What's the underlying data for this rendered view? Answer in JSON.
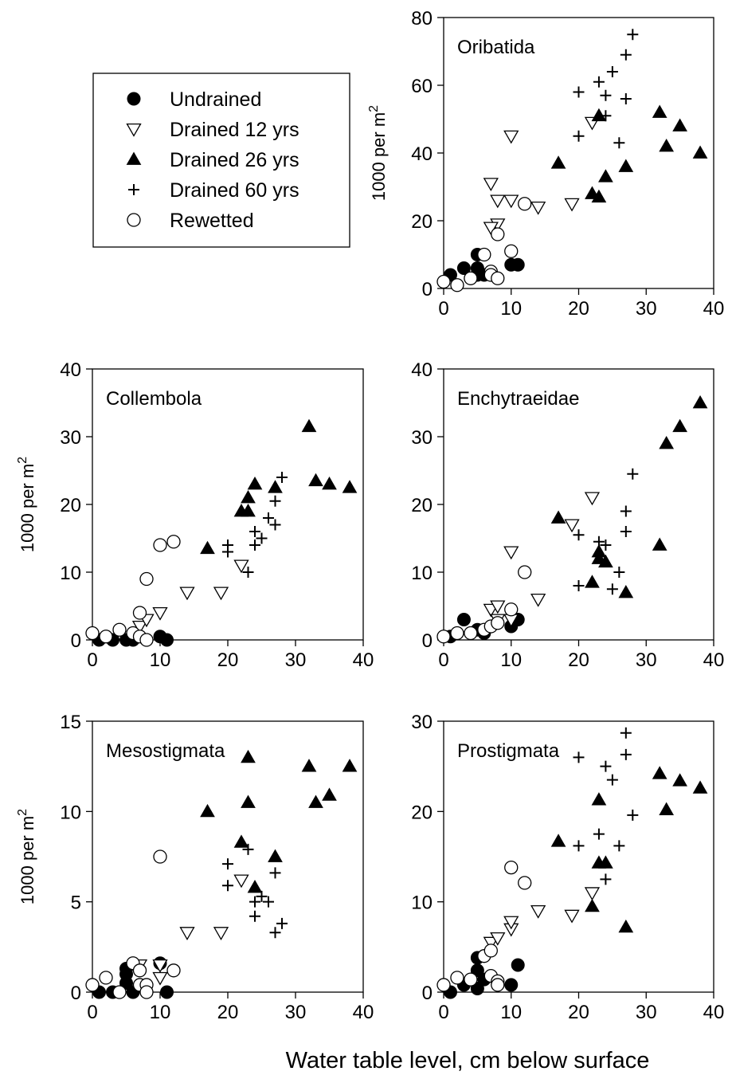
{
  "figure": {
    "xlabel": "Water table level, cm below surface"
  },
  "legend": {
    "entries": [
      {
        "label": "Undrained",
        "marker": "filled-circle"
      },
      {
        "label": "Drained 12 yrs",
        "marker": "open-down-triangle"
      },
      {
        "label": "Drained 26 yrs",
        "marker": "filled-up-triangle"
      },
      {
        "label": "Drained 60 yrs",
        "marker": "plus"
      },
      {
        "label": "Rewetted",
        "marker": "open-circle"
      }
    ]
  },
  "colors": {
    "ink": "#000000",
    "open_fill": "#ffffff"
  },
  "chart_data": [
    {
      "type": "scatter",
      "title": "Oribatida",
      "ylabel": "1000 per m²",
      "xlim": [
        0,
        40
      ],
      "ylim": [
        0,
        80
      ],
      "xticks": [
        0,
        10,
        20,
        30,
        40
      ],
      "yticks": [
        0,
        20,
        40,
        60,
        80
      ],
      "series": [
        {
          "name": "Undrained",
          "points": [
            [
              1,
              4
            ],
            [
              3,
              6
            ],
            [
              5,
              10
            ],
            [
              5,
              6
            ],
            [
              5,
              4
            ],
            [
              6,
              4
            ],
            [
              4,
              3
            ],
            [
              10,
              7
            ],
            [
              11,
              7
            ]
          ]
        },
        {
          "name": "Drained 12 yrs",
          "points": [
            [
              10,
              45
            ],
            [
              7,
              31
            ],
            [
              8,
              26
            ],
            [
              10,
              26
            ],
            [
              8,
              19
            ],
            [
              7,
              18
            ],
            [
              22,
              49
            ],
            [
              19,
              25
            ],
            [
              14,
              24
            ]
          ]
        },
        {
          "name": "Drained 26 yrs",
          "points": [
            [
              17,
              37
            ],
            [
              22,
              28
            ],
            [
              23,
              27
            ],
            [
              24,
              33
            ],
            [
              23,
              51
            ],
            [
              27,
              36
            ],
            [
              32,
              52
            ],
            [
              33,
              42
            ],
            [
              35,
              48
            ],
            [
              38,
              40
            ]
          ]
        },
        {
          "name": "Drained 60 yrs",
          "points": [
            [
              20,
              58
            ],
            [
              20,
              45
            ],
            [
              23,
              61
            ],
            [
              24,
              57
            ],
            [
              25,
              64
            ],
            [
              24,
              51
            ],
            [
              26,
              43
            ],
            [
              27,
              69
            ],
            [
              27,
              56
            ],
            [
              28,
              75
            ]
          ]
        },
        {
          "name": "Rewetted",
          "points": [
            [
              0,
              2
            ],
            [
              2,
              1
            ],
            [
              4,
              3
            ],
            [
              6,
              10
            ],
            [
              7,
              5
            ],
            [
              7,
              4
            ],
            [
              8,
              3
            ],
            [
              8,
              16
            ],
            [
              10,
              11
            ],
            [
              12,
              25
            ]
          ]
        }
      ]
    },
    {
      "type": "scatter",
      "title": "Collembola",
      "ylabel": "1000 per m²",
      "xlim": [
        0,
        40
      ],
      "ylim": [
        0,
        40
      ],
      "xticks": [
        0,
        10,
        20,
        30,
        40
      ],
      "yticks": [
        0,
        10,
        20,
        30,
        40
      ],
      "series": [
        {
          "name": "Undrained",
          "points": [
            [
              1,
              0
            ],
            [
              3,
              0
            ],
            [
              5,
              0
            ],
            [
              6,
              0
            ],
            [
              10,
              0.5
            ],
            [
              11,
              0
            ]
          ]
        },
        {
          "name": "Drained 12 yrs",
          "points": [
            [
              7,
              2
            ],
            [
              8,
              3
            ],
            [
              10,
              4
            ],
            [
              14,
              7
            ],
            [
              19,
              7
            ],
            [
              22,
              11
            ]
          ]
        },
        {
          "name": "Drained 26 yrs",
          "points": [
            [
              17,
              13.5
            ],
            [
              22,
              19
            ],
            [
              23,
              21
            ],
            [
              23,
              19
            ],
            [
              24,
              23
            ],
            [
              27,
              22.5
            ],
            [
              32,
              31.5
            ],
            [
              33,
              23.5
            ],
            [
              35,
              23
            ],
            [
              38,
              22.5
            ]
          ]
        },
        {
          "name": "Drained 60 yrs",
          "points": [
            [
              20,
              14
            ],
            [
              20,
              13
            ],
            [
              23,
              10
            ],
            [
              24,
              14
            ],
            [
              24,
              16
            ],
            [
              25,
              15
            ],
            [
              26,
              18
            ],
            [
              27,
              17
            ],
            [
              27,
              20.5
            ],
            [
              28,
              24
            ]
          ]
        },
        {
          "name": "Rewetted",
          "points": [
            [
              0,
              1
            ],
            [
              2,
              0.5
            ],
            [
              4,
              1.5
            ],
            [
              6,
              1
            ],
            [
              7,
              4
            ],
            [
              7,
              0.5
            ],
            [
              8,
              9
            ],
            [
              8,
              0
            ],
            [
              10,
              14
            ],
            [
              12,
              14.5
            ]
          ]
        }
      ]
    },
    {
      "type": "scatter",
      "title": "Enchytraeidae",
      "ylabel": "",
      "xlim": [
        0,
        40
      ],
      "ylim": [
        0,
        40
      ],
      "xticks": [
        0,
        10,
        20,
        30,
        40
      ],
      "yticks": [
        0,
        10,
        20,
        30,
        40
      ],
      "series": [
        {
          "name": "Undrained",
          "points": [
            [
              1,
              0.5
            ],
            [
              3,
              3
            ],
            [
              5,
              1.5
            ],
            [
              6,
              1
            ],
            [
              10,
              2
            ],
            [
              11,
              3
            ]
          ]
        },
        {
          "name": "Drained 12 yrs",
          "points": [
            [
              7,
              4.5
            ],
            [
              8,
              5
            ],
            [
              8,
              3
            ],
            [
              10,
              13
            ],
            [
              10,
              3
            ],
            [
              14,
              6
            ],
            [
              19,
              17
            ],
            [
              22,
              21
            ]
          ]
        },
        {
          "name": "Drained 26 yrs",
          "points": [
            [
              17,
              18
            ],
            [
              22,
              8.5
            ],
            [
              23,
              12
            ],
            [
              23,
              13
            ],
            [
              24,
              11.5
            ],
            [
              27,
              7
            ],
            [
              32,
              14
            ],
            [
              33,
              29
            ],
            [
              35,
              31.5
            ],
            [
              38,
              35
            ]
          ]
        },
        {
          "name": "Drained 60 yrs",
          "points": [
            [
              20,
              15.5
            ],
            [
              20,
              8
            ],
            [
              23,
              14.5
            ],
            [
              24,
              14
            ],
            [
              25,
              7.5
            ],
            [
              26,
              10
            ],
            [
              27,
              16
            ],
            [
              27,
              19
            ],
            [
              28,
              24.5
            ]
          ]
        },
        {
          "name": "Rewetted",
          "points": [
            [
              0,
              0.5
            ],
            [
              2,
              1
            ],
            [
              4,
              1
            ],
            [
              6,
              1.5
            ],
            [
              7,
              2
            ],
            [
              8,
              2.5
            ],
            [
              10,
              4.5
            ],
            [
              12,
              10
            ]
          ]
        }
      ]
    },
    {
      "type": "scatter",
      "title": "Mesostigmata",
      "ylabel": "1000 per m²",
      "xlim": [
        0,
        40
      ],
      "ylim": [
        0,
        15
      ],
      "xticks": [
        0,
        10,
        20,
        30,
        40
      ],
      "yticks": [
        0,
        5,
        10,
        15
      ],
      "series": [
        {
          "name": "Undrained",
          "points": [
            [
              1,
              0
            ],
            [
              3,
              0
            ],
            [
              5,
              0.5
            ],
            [
              5,
              1
            ],
            [
              5,
              1.3
            ],
            [
              6,
              0
            ],
            [
              10,
              1.6
            ],
            [
              11,
              0
            ]
          ]
        },
        {
          "name": "Drained 12 yrs",
          "points": [
            [
              7,
              1.5
            ],
            [
              10,
              1.5
            ],
            [
              10,
              0.8
            ],
            [
              14,
              3.3
            ],
            [
              19,
              3.3
            ],
            [
              22,
              6.2
            ]
          ]
        },
        {
          "name": "Drained 26 yrs",
          "points": [
            [
              17,
              10
            ],
            [
              22,
              8.3
            ],
            [
              23,
              13
            ],
            [
              23,
              10.5
            ],
            [
              24,
              5.8
            ],
            [
              27,
              7.5
            ],
            [
              32,
              12.5
            ],
            [
              33,
              10.5
            ],
            [
              35,
              10.9
            ],
            [
              38,
              12.5
            ]
          ]
        },
        {
          "name": "Drained 60 yrs",
          "points": [
            [
              20,
              7.1
            ],
            [
              20,
              5.9
            ],
            [
              23,
              7.9
            ],
            [
              24,
              5
            ],
            [
              24,
              4.2
            ],
            [
              25,
              5.3
            ],
            [
              26,
              5
            ],
            [
              27,
              6.6
            ],
            [
              27,
              3.3
            ],
            [
              28,
              3.8
            ]
          ]
        },
        {
          "name": "Rewetted",
          "points": [
            [
              0,
              0.4
            ],
            [
              2,
              0.8
            ],
            [
              4,
              0
            ],
            [
              6,
              1.6
            ],
            [
              7,
              1.2
            ],
            [
              7,
              0.4
            ],
            [
              8,
              0.4
            ],
            [
              8,
              0
            ],
            [
              10,
              7.5
            ],
            [
              12,
              1.2
            ]
          ]
        }
      ]
    },
    {
      "type": "scatter",
      "title": "Prostigmata",
      "ylabel": "",
      "xlim": [
        0,
        40
      ],
      "ylim": [
        0,
        30
      ],
      "xticks": [
        0,
        10,
        20,
        30,
        40
      ],
      "yticks": [
        0,
        10,
        20,
        30
      ],
      "series": [
        {
          "name": "Undrained",
          "points": [
            [
              1,
              0
            ],
            [
              3,
              0.8
            ],
            [
              5,
              3.8
            ],
            [
              5,
              2.4
            ],
            [
              5,
              0.4
            ],
            [
              6,
              1.4
            ],
            [
              10,
              0.8
            ],
            [
              11,
              3
            ]
          ]
        },
        {
          "name": "Drained 12 yrs",
          "points": [
            [
              7,
              5.5
            ],
            [
              8,
              6
            ],
            [
              10,
              7
            ],
            [
              10,
              7.8
            ],
            [
              14,
              9
            ],
            [
              19,
              8.5
            ],
            [
              22,
              11
            ]
          ]
        },
        {
          "name": "Drained 26 yrs",
          "points": [
            [
              17,
              16.7
            ],
            [
              22,
              9.5
            ],
            [
              23,
              21.3
            ],
            [
              23,
              14.3
            ],
            [
              24,
              14.3
            ],
            [
              27,
              7.2
            ],
            [
              32,
              24.2
            ],
            [
              33,
              20.2
            ],
            [
              35,
              23.4
            ],
            [
              38,
              22.6
            ]
          ]
        },
        {
          "name": "Drained 60 yrs",
          "points": [
            [
              20,
              26
            ],
            [
              20,
              16.2
            ],
            [
              23,
              17.5
            ],
            [
              24,
              25
            ],
            [
              24,
              12.5
            ],
            [
              25,
              23.5
            ],
            [
              26,
              16.2
            ],
            [
              27,
              28.7
            ],
            [
              27,
              26.3
            ],
            [
              28,
              19.6
            ]
          ]
        },
        {
          "name": "Rewetted",
          "points": [
            [
              0,
              0.8
            ],
            [
              2,
              1.6
            ],
            [
              4,
              1.4
            ],
            [
              6,
              4
            ],
            [
              7,
              4.6
            ],
            [
              7,
              1.8
            ],
            [
              8,
              1.2
            ],
            [
              8,
              0.8
            ],
            [
              10,
              13.8
            ],
            [
              12,
              12.1
            ]
          ]
        }
      ]
    }
  ]
}
